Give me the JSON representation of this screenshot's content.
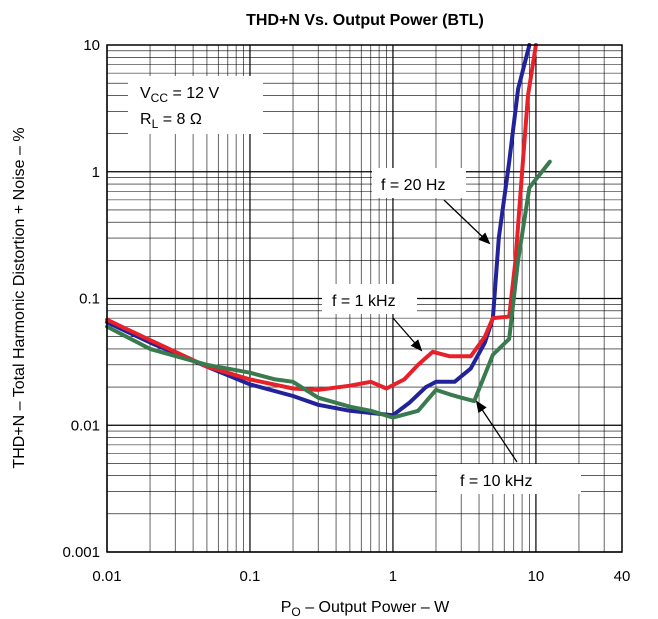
{
  "chart_data": {
    "type": "line",
    "title": "THD+N Vs. Output Power (BTL)",
    "xlabel": {
      "main": "P",
      "sub": "O",
      "rest": " – Output Power – W"
    },
    "ylabel": "THD+N – Total Harmonic Distortion + Noise – %",
    "x_scale": "log",
    "y_scale": "log",
    "xlim": [
      0.01,
      40
    ],
    "ylim": [
      0.001,
      10
    ],
    "x_ticks": [
      {
        "value": 0.01,
        "label": "0.01"
      },
      {
        "value": 0.1,
        "label": "0.1"
      },
      {
        "value": 1,
        "label": "1"
      },
      {
        "value": 10,
        "label": "10"
      },
      {
        "value": 40,
        "label": "40"
      }
    ],
    "y_ticks": [
      {
        "value": 0.001,
        "label": "0.001"
      },
      {
        "value": 0.01,
        "label": "0.01"
      },
      {
        "value": 0.1,
        "label": "0.1"
      },
      {
        "value": 1,
        "label": "1"
      },
      {
        "value": 10,
        "label": "10"
      }
    ],
    "grid": true,
    "conditions": {
      "line1": {
        "main": "V",
        "sub": "CC",
        "rest": " = 12 V"
      },
      "line2": {
        "main": "R",
        "sub": "L",
        "rest": " = 8 Ω"
      }
    },
    "series": [
      {
        "name": "f = 20 Hz",
        "color": "#22229a",
        "points": [
          [
            0.01,
            0.065
          ],
          [
            0.02,
            0.045
          ],
          [
            0.05,
            0.029
          ],
          [
            0.1,
            0.021
          ],
          [
            0.2,
            0.017
          ],
          [
            0.3,
            0.0145
          ],
          [
            0.5,
            0.013
          ],
          [
            1.0,
            0.012
          ],
          [
            1.3,
            0.015
          ],
          [
            1.7,
            0.02
          ],
          [
            2.0,
            0.022
          ],
          [
            2.7,
            0.022
          ],
          [
            3.5,
            0.028
          ],
          [
            4.4,
            0.045
          ],
          [
            5.0,
            0.07
          ],
          [
            5.5,
            0.3
          ],
          [
            6.5,
            1.2
          ],
          [
            7.5,
            4.5
          ],
          [
            9.0,
            10
          ]
        ]
      },
      {
        "name": "f = 1 kHz",
        "color": "#e8202a",
        "points": [
          [
            0.01,
            0.068
          ],
          [
            0.02,
            0.047
          ],
          [
            0.05,
            0.029
          ],
          [
            0.1,
            0.023
          ],
          [
            0.2,
            0.0195
          ],
          [
            0.3,
            0.019
          ],
          [
            0.5,
            0.0205
          ],
          [
            0.7,
            0.022
          ],
          [
            0.9,
            0.0195
          ],
          [
            1.2,
            0.023
          ],
          [
            1.5,
            0.03
          ],
          [
            1.9,
            0.038
          ],
          [
            2.5,
            0.035
          ],
          [
            3.5,
            0.035
          ],
          [
            4.4,
            0.05
          ],
          [
            5.0,
            0.07
          ],
          [
            6.5,
            0.072
          ],
          [
            7.2,
            0.2
          ],
          [
            8.0,
            1.0
          ],
          [
            8.8,
            4.0
          ],
          [
            10.0,
            10
          ]
        ]
      },
      {
        "name": "f = 10 kHz",
        "color": "#3a7a4f",
        "points": [
          [
            0.01,
            0.06
          ],
          [
            0.02,
            0.04
          ],
          [
            0.05,
            0.03
          ],
          [
            0.1,
            0.026
          ],
          [
            0.15,
            0.023
          ],
          [
            0.2,
            0.022
          ],
          [
            0.3,
            0.0165
          ],
          [
            0.5,
            0.014
          ],
          [
            0.7,
            0.013
          ],
          [
            1.0,
            0.0115
          ],
          [
            1.5,
            0.013
          ],
          [
            2.0,
            0.019
          ],
          [
            2.5,
            0.0175
          ],
          [
            3.0,
            0.0165
          ],
          [
            3.7,
            0.0155
          ],
          [
            5.0,
            0.036
          ],
          [
            6.5,
            0.048
          ],
          [
            7.5,
            0.2
          ],
          [
            9.0,
            0.75
          ],
          [
            12.5,
            1.2
          ]
        ]
      }
    ],
    "annotations": [
      {
        "text": "f = 20 Hz",
        "series": "f = 20 Hz"
      },
      {
        "text": "f = 1 kHz",
        "series": "f = 1 kHz"
      },
      {
        "text": "f = 10 kHz",
        "series": "f = 10 kHz"
      }
    ]
  }
}
